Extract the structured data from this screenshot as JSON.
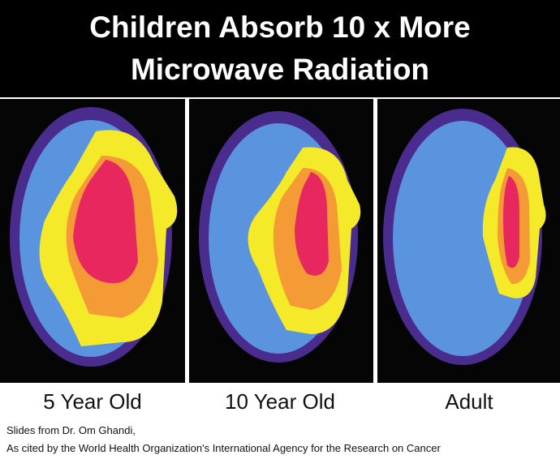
{
  "title_lines": [
    "Children Absorb 10 x More",
    "Microwave Radiation"
  ],
  "panels": [
    {
      "label": "5 Year Old"
    },
    {
      "label": "10 Year Old"
    },
    {
      "label": "Adult"
    }
  ],
  "caption_lines": [
    "Slides from Dr. Om Ghandi,",
    "As cited by the World Health Organization's International Agency for the Research on Cancer"
  ]
}
